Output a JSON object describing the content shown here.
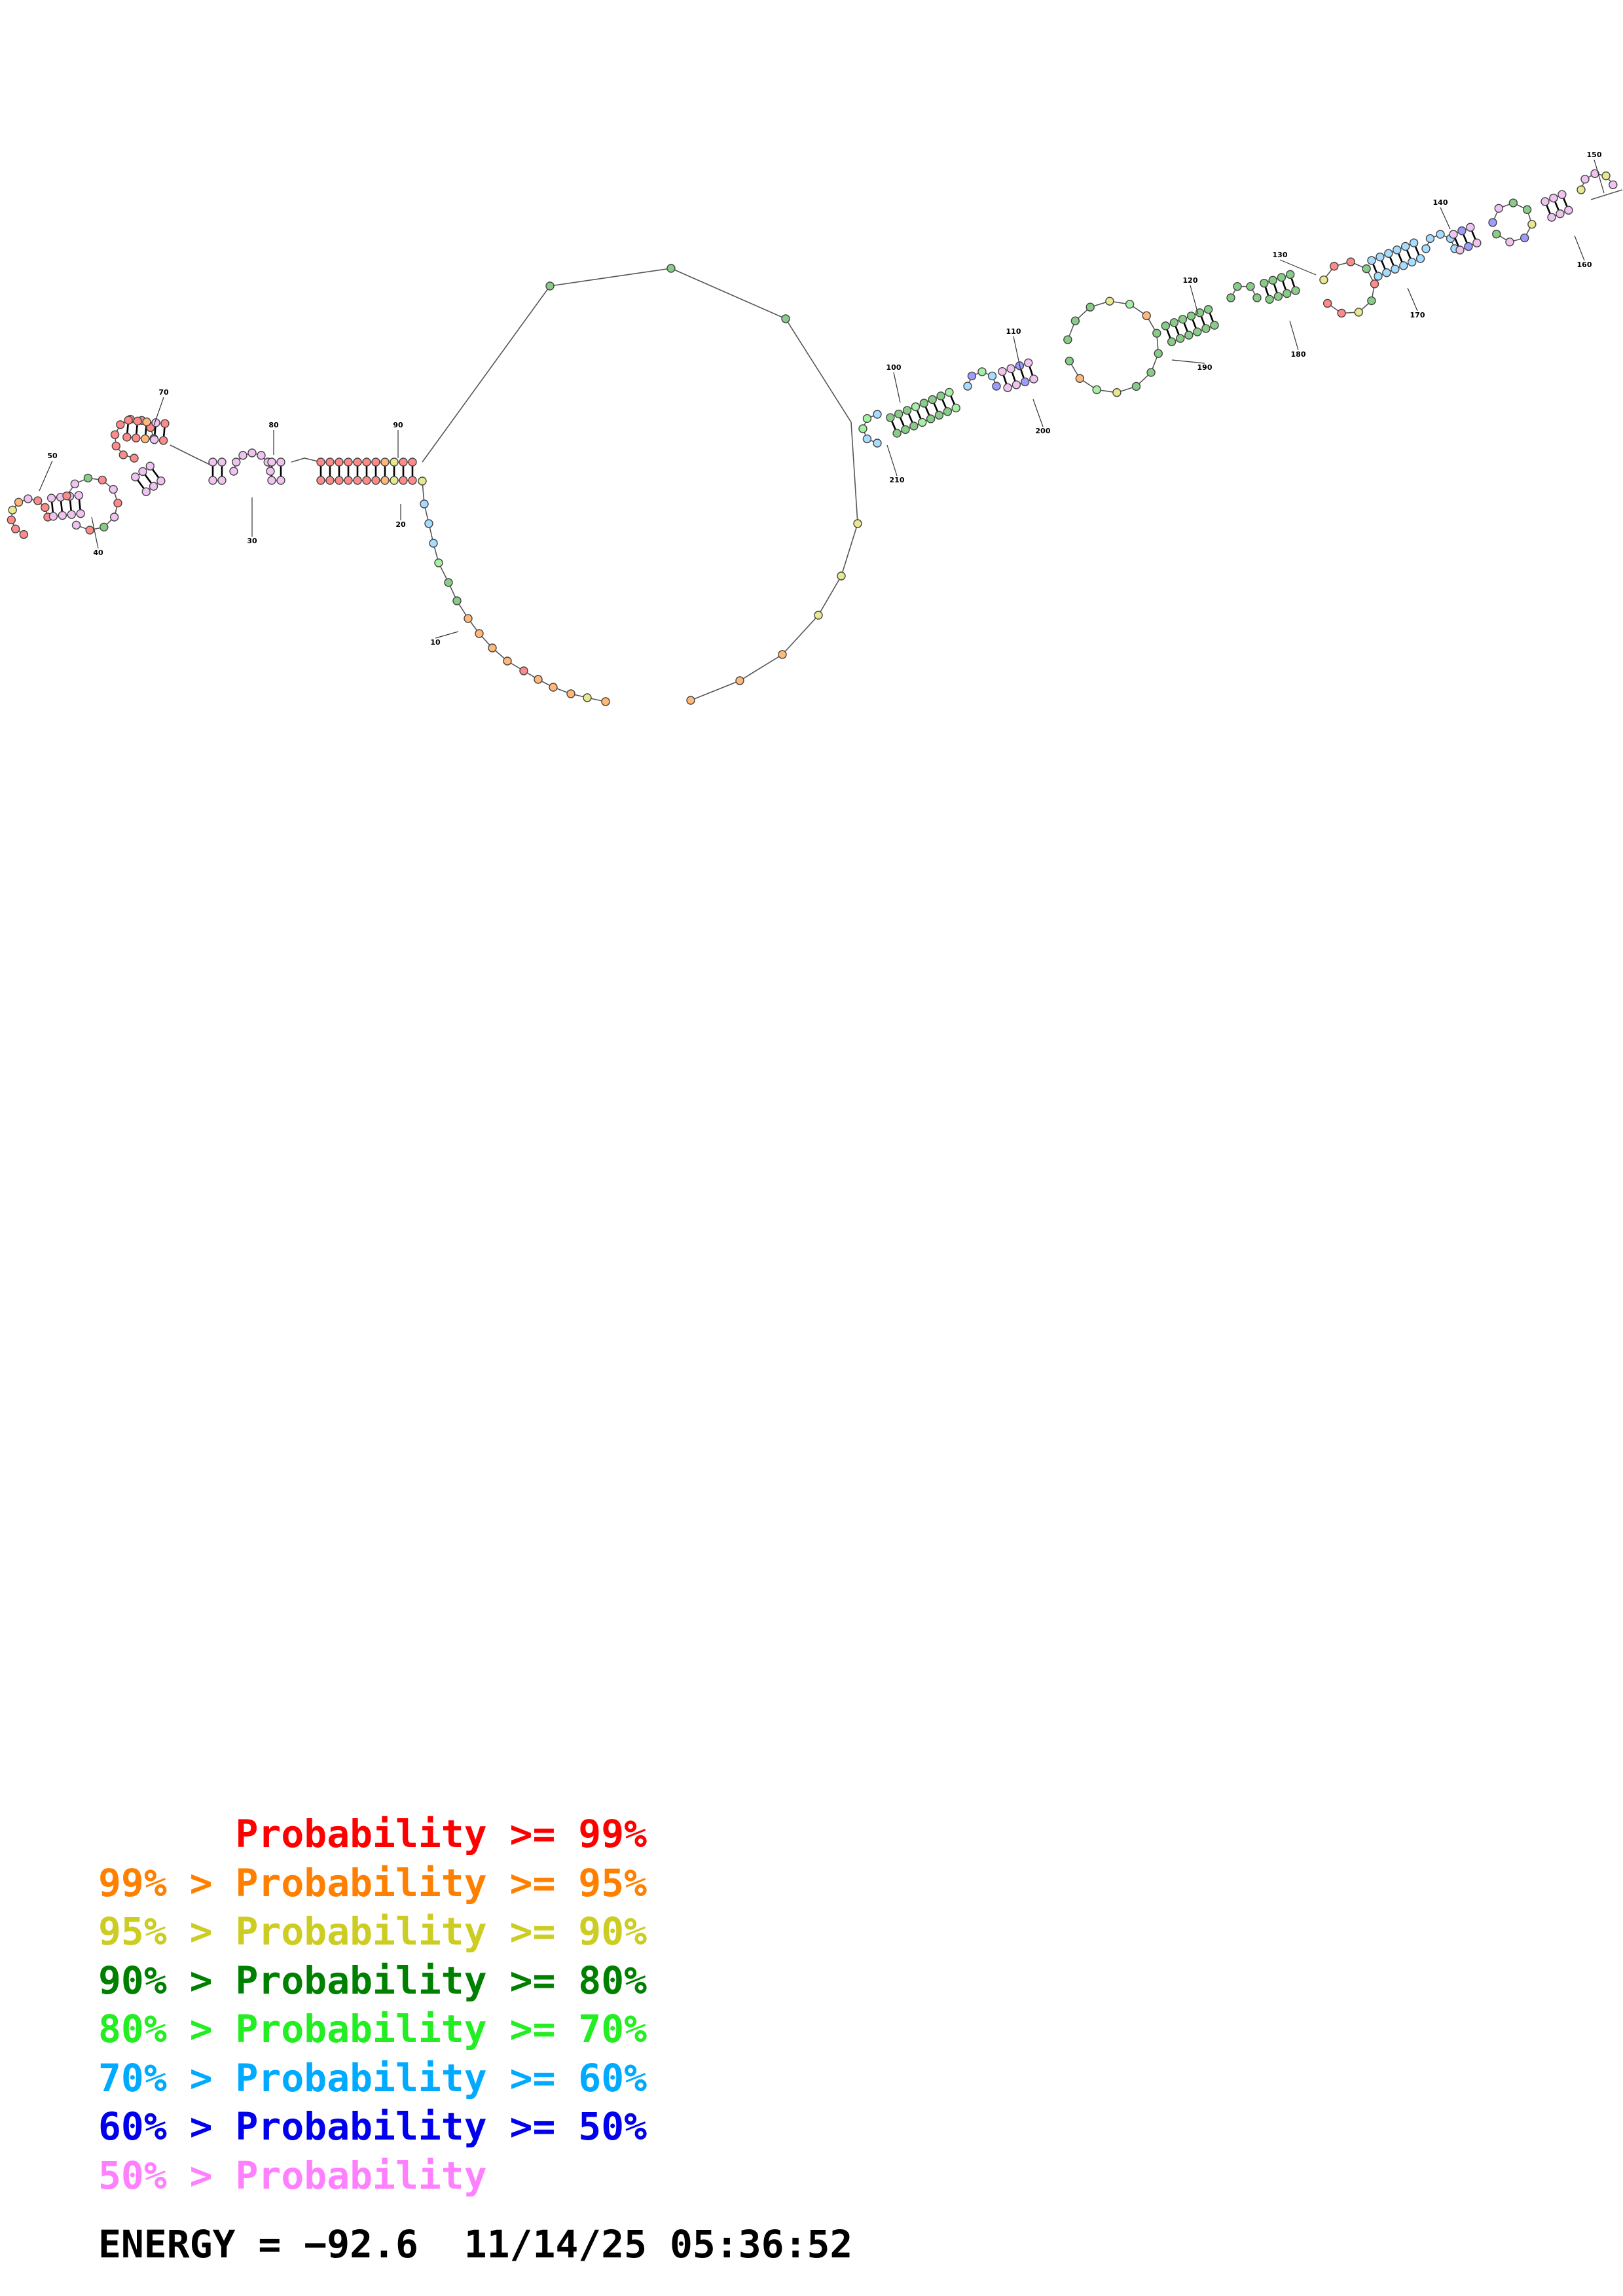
{
  "legend": [
    {
      "prefix": "",
      "text": "Probability >= 99%",
      "color": "#ff0000"
    },
    {
      "prefix": "99% > ",
      "text": "Probability >= 95%",
      "color": "#ff8000"
    },
    {
      "prefix": "95% > ",
      "text": "Probability >= 90%",
      "color": "#cccc22"
    },
    {
      "prefix": "90% > ",
      "text": "Probability >= 80%",
      "color": "#008000"
    },
    {
      "prefix": "80% > ",
      "text": "Probability >= 70%",
      "color": "#22ee22"
    },
    {
      "prefix": "70% > ",
      "text": "Probability >= 60%",
      "color": "#00aaff"
    },
    {
      "prefix": "60% > ",
      "text": "Probability >= 50%",
      "color": "#0000ee"
    },
    {
      "prefix": "50% > ",
      "text": "Probability",
      "color": "#ff80ff"
    }
  ],
  "energy_line": "ENERGY = −92.6  11/14/25 05:36:52",
  "number_labels": [
    "10",
    "20",
    "30",
    "40",
    "50",
    "70",
    "80",
    "90",
    "100",
    "110",
    "120",
    "130",
    "140",
    "150",
    "160",
    "170",
    "180",
    "190",
    "200",
    "210"
  ],
  "probability_colors": {
    "p99": "#ff8a8a",
    "p95": "#ffb878",
    "p90": "#e8e890",
    "p80": "#88cc88",
    "p70": "#a6f0a6",
    "p60": "#a6dcff",
    "p50": "#9c9cff",
    "plt50": "#f0c4f0"
  }
}
